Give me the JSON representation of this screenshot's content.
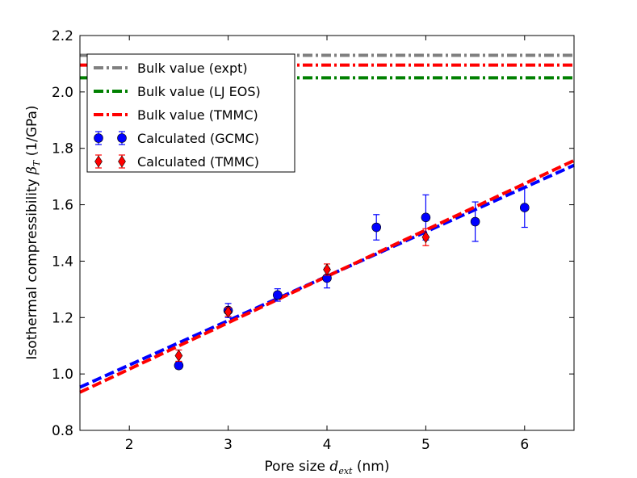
{
  "chart_data": {
    "type": "scatter",
    "xlabel_prefix": "Pore size ",
    "xlabel_symbol": "d",
    "xlabel_subscript": "ext",
    "xlabel_suffix": " (nm)",
    "ylabel_prefix": "Isothermal compressibility ",
    "ylabel_symbol": "β",
    "ylabel_subscript": "T",
    "ylabel_suffix": " (1/GPa)",
    "xlim": [
      1.5,
      6.5
    ],
    "ylim": [
      0.8,
      2.2
    ],
    "xticks": [
      2,
      3,
      4,
      5,
      6
    ],
    "yticks": [
      0.8,
      1.0,
      1.2,
      1.4,
      1.6,
      1.8,
      2.0,
      2.2
    ],
    "xtick_labels": [
      "2",
      "3",
      "4",
      "5",
      "6"
    ],
    "ytick_labels": [
      "0.8",
      "1.0",
      "1.2",
      "1.4",
      "1.6",
      "1.8",
      "2.0",
      "2.2"
    ],
    "grid": false,
    "legend_position": "top-left",
    "hlines": [
      {
        "name": "Bulk value (expt)",
        "y": 2.13,
        "color": "#808080",
        "style": "dashdot"
      },
      {
        "name": "Bulk value (LJ EOS)",
        "y": 2.05,
        "color": "#008000",
        "style": "dashdot"
      },
      {
        "name": "Bulk value (TMMC)",
        "y": 2.095,
        "color": "#ff0000",
        "style": "dashdot"
      }
    ],
    "series": [
      {
        "name": "Calculated (GCMC)",
        "marker": "circle",
        "color": "#0000ff",
        "x": [
          2.5,
          3.0,
          3.5,
          4.0,
          4.5,
          5.0,
          5.5,
          6.0
        ],
        "y": [
          1.03,
          1.225,
          1.28,
          1.34,
          1.52,
          1.555,
          1.54,
          1.59
        ],
        "yerr": [
          0.012,
          0.025,
          0.022,
          0.035,
          0.045,
          0.08,
          0.07,
          0.07
        ]
      },
      {
        "name": "Calculated (TMMC)",
        "marker": "diamond",
        "color": "#ff0000",
        "x": [
          2.5,
          3.0,
          4.0,
          5.0
        ],
        "y": [
          1.065,
          1.22,
          1.37,
          1.485
        ],
        "yerr": [
          0.02,
          0.015,
          0.02,
          0.03
        ]
      }
    ],
    "fit_lines": [
      {
        "color": "#0000ff",
        "x": [
          1.5,
          6.5
        ],
        "y": [
          0.953,
          1.74
        ]
      },
      {
        "color": "#ff0000",
        "x": [
          1.5,
          6.5
        ],
        "y": [
          0.935,
          1.757
        ]
      }
    ]
  }
}
